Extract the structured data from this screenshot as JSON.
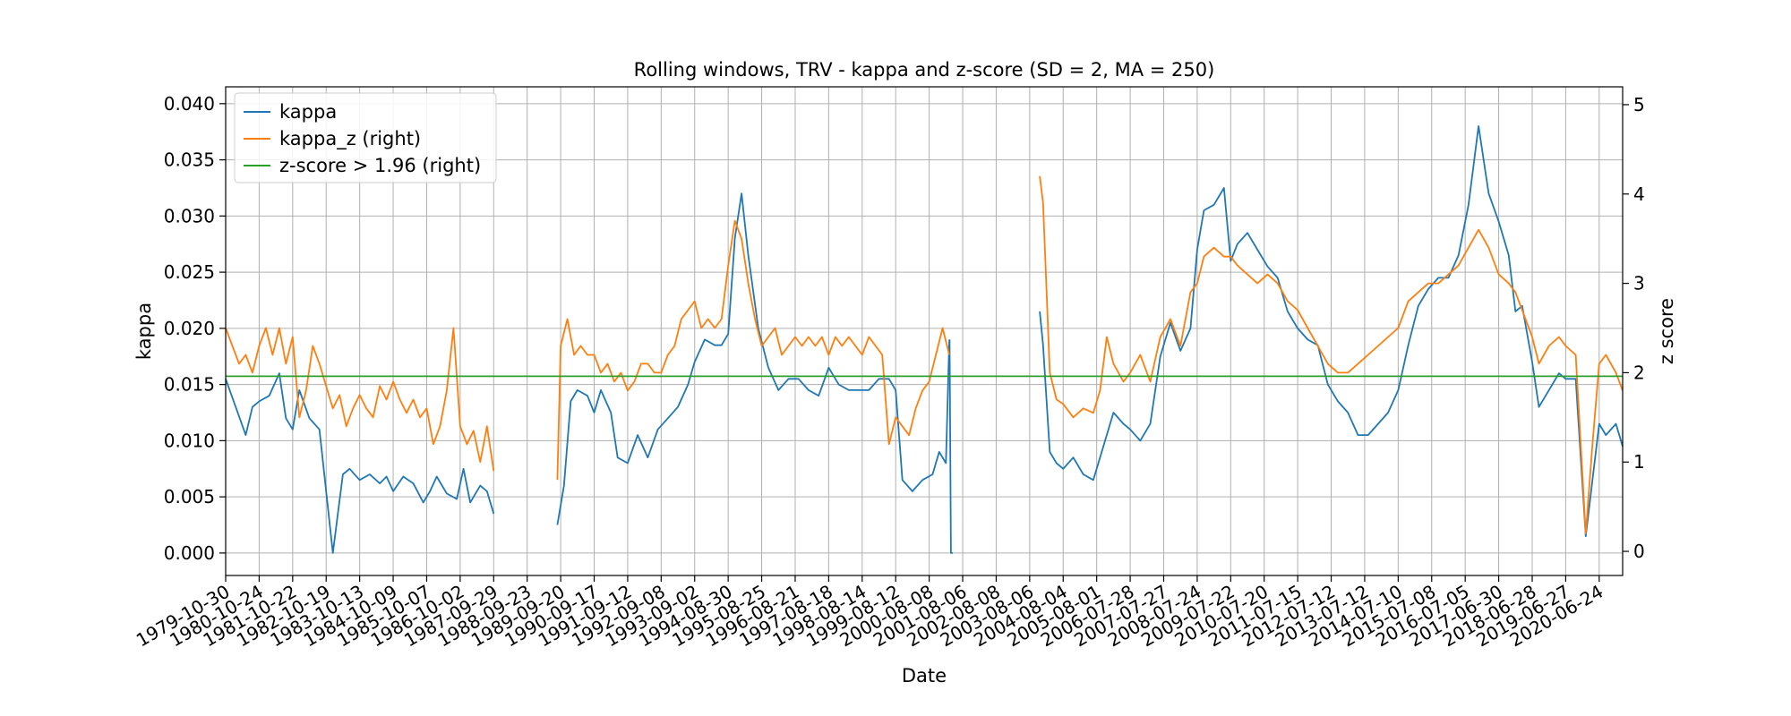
{
  "chart_data": {
    "type": "line",
    "title": "Rolling windows, TRV - kappa and z-score (SD = 2, MA = 250)",
    "xlabel": "Date",
    "ylabel": "kappa",
    "ylabel_right": "z score",
    "ylim": [
      -0.002,
      0.0415
    ],
    "ylim_right": [
      -0.27,
      5.2
    ],
    "yticks": [
      "0.000",
      "0.005",
      "0.010",
      "0.015",
      "0.020",
      "0.025",
      "0.030",
      "0.035",
      "0.040"
    ],
    "yticks_right": [
      "0",
      "1",
      "2",
      "3",
      "4",
      "5"
    ],
    "grid": true,
    "legend_position": "top-left",
    "x_tick_labels": [
      "1979-10-30",
      "1980-10-24",
      "1981-10-22",
      "1982-10-19",
      "1983-10-13",
      "1984-10-09",
      "1985-10-07",
      "1986-10-02",
      "1987-09-29",
      "1988-09-23",
      "1989-09-20",
      "1990-09-17",
      "1991-09-12",
      "1992-09-08",
      "1993-09-02",
      "1994-08-30",
      "1995-08-25",
      "1996-08-21",
      "1997-08-18",
      "1998-08-14",
      "1999-08-12",
      "2000-08-08",
      "2001-08-06",
      "2002-08-08",
      "2003-08-06",
      "2004-08-04",
      "2005-08-01",
      "2006-07-28",
      "2007-07-27",
      "2008-07-24",
      "2009-07-22",
      "2010-07-20",
      "2011-07-15",
      "2012-07-12",
      "2013-07-12",
      "2014-07-10",
      "2015-07-08",
      "2016-07-05",
      "2017-06-30",
      "2018-06-28",
      "2019-06-27",
      "2020-06-24"
    ],
    "x_start_index": 0,
    "x_end_index": 41.7,
    "series": [
      {
        "name": "kappa",
        "axis": "left",
        "color": "#1f77b4",
        "segments": [
          {
            "x": [
              0,
              0.3,
              0.6,
              0.8,
              1.0,
              1.3,
              1.6,
              1.8,
              2.0,
              2.2,
              2.5,
              2.8,
              3.0,
              3.2,
              3.5,
              3.7,
              4.0,
              4.3,
              4.6,
              4.8,
              5.0,
              5.3,
              5.6,
              5.9,
              6.1,
              6.3,
              6.6,
              6.9,
              7.1,
              7.3,
              7.6,
              7.8,
              8.0
            ],
            "y": [
              0.0155,
              0.013,
              0.0105,
              0.013,
              0.0135,
              0.014,
              0.016,
              0.012,
              0.011,
              0.0145,
              0.012,
              0.011,
              0.0055,
              0.0,
              0.007,
              0.0075,
              0.0065,
              0.007,
              0.0062,
              0.0068,
              0.0055,
              0.0068,
              0.0062,
              0.0045,
              0.0055,
              0.0068,
              0.0053,
              0.0048,
              0.0075,
              0.0045,
              0.006,
              0.0055,
              0.0035
            ]
          },
          {
            "x": [
              9.9,
              10.1,
              10.3,
              10.5,
              10.8,
              11.0,
              11.2,
              11.5,
              11.7,
              12.0,
              12.3,
              12.6,
              12.9,
              13.2,
              13.5,
              13.8,
              14.0,
              14.3,
              14.6,
              14.8,
              15.0,
              15.2,
              15.4,
              15.6,
              15.9,
              16.2,
              16.5,
              16.8,
              17.1,
              17.4,
              17.7,
              18.0,
              18.3,
              18.6,
              18.9,
              19.2,
              19.5,
              19.8,
              20.0,
              20.2,
              20.5,
              20.8,
              21.1,
              21.3,
              21.5,
              21.6
            ],
            "y": [
              0.0025,
              0.006,
              0.0135,
              0.0145,
              0.014,
              0.0125,
              0.0145,
              0.0125,
              0.0085,
              0.008,
              0.0105,
              0.0085,
              0.011,
              0.012,
              0.013,
              0.015,
              0.017,
              0.019,
              0.0185,
              0.0185,
              0.0195,
              0.028,
              0.032,
              0.0265,
              0.02,
              0.0165,
              0.0145,
              0.0155,
              0.0155,
              0.0145,
              0.014,
              0.0165,
              0.015,
              0.0145,
              0.0145,
              0.0145,
              0.0155,
              0.0155,
              0.0145,
              0.0065,
              0.0055,
              0.0065,
              0.007,
              0.009,
              0.008,
              0.019
            ]
          },
          {
            "x": [
              21.61,
              21.65,
              21.7
            ],
            "y": [
              0.019,
              0.0,
              0.0
            ]
          },
          {
            "x": [
              24.3,
              24.4,
              24.6,
              24.8,
              25.0,
              25.3,
              25.6,
              25.9,
              26.1,
              26.3,
              26.5,
              26.8,
              27.0,
              27.3,
              27.6,
              27.9,
              28.2,
              28.5,
              28.8,
              29.0,
              29.2,
              29.5,
              29.8,
              30.0,
              30.2,
              30.5,
              30.8,
              31.1,
              31.4,
              31.7,
              32.0,
              32.3,
              32.6,
              32.9,
              33.2,
              33.5,
              33.8,
              34.1,
              34.4,
              34.7,
              35.0,
              35.3,
              35.6,
              35.9,
              36.2,
              36.5,
              36.8,
              37.1,
              37.4,
              37.7,
              38.0,
              38.3,
              38.5,
              38.7,
              39.0,
              39.2,
              39.5,
              39.8,
              40.0,
              40.3,
              40.6,
              40.8,
              41.0,
              41.2,
              41.5,
              41.7
            ],
            "y": [
              0.0215,
              0.0185,
              0.009,
              0.008,
              0.0075,
              0.0085,
              0.007,
              0.0065,
              0.0085,
              0.0105,
              0.0125,
              0.0115,
              0.011,
              0.01,
              0.0115,
              0.0175,
              0.0205,
              0.018,
              0.02,
              0.027,
              0.0305,
              0.031,
              0.0325,
              0.026,
              0.0275,
              0.0285,
              0.027,
              0.0255,
              0.0245,
              0.0215,
              0.02,
              0.019,
              0.0185,
              0.015,
              0.0135,
              0.0125,
              0.0105,
              0.0105,
              0.0115,
              0.0125,
              0.0145,
              0.0185,
              0.022,
              0.0235,
              0.0245,
              0.0245,
              0.0265,
              0.031,
              0.038,
              0.032,
              0.0295,
              0.0265,
              0.0215,
              0.022,
              0.017,
              0.013,
              0.0145,
              0.016,
              0.0155,
              0.0155,
              0.0015,
              0.0065,
              0.0115,
              0.0105,
              0.0115,
              0.0095
            ]
          }
        ]
      },
      {
        "name": "kappa_z (right)",
        "axis": "right",
        "color": "#ff7f0e",
        "segments": [
          {
            "x": [
              0,
              0.2,
              0.4,
              0.6,
              0.8,
              1.0,
              1.2,
              1.4,
              1.6,
              1.8,
              2.0,
              2.2,
              2.4,
              2.6,
              2.8,
              3.0,
              3.2,
              3.4,
              3.6,
              3.8,
              4.0,
              4.2,
              4.4,
              4.6,
              4.8,
              5.0,
              5.2,
              5.4,
              5.6,
              5.8,
              6.0,
              6.2,
              6.4,
              6.6,
              6.8,
              7.0,
              7.2,
              7.4,
              7.6,
              7.8,
              8.0
            ],
            "y": [
              2.5,
              2.3,
              2.1,
              2.2,
              2.0,
              2.3,
              2.5,
              2.2,
              2.5,
              2.1,
              2.4,
              1.5,
              1.8,
              2.3,
              2.1,
              1.85,
              1.6,
              1.75,
              1.4,
              1.6,
              1.75,
              1.6,
              1.5,
              1.85,
              1.7,
              1.9,
              1.7,
              1.55,
              1.7,
              1.5,
              1.6,
              1.2,
              1.4,
              1.8,
              2.5,
              1.4,
              1.2,
              1.35,
              1.0,
              1.4,
              0.9
            ]
          },
          {
            "x": [
              9.9,
              10.0,
              10.2,
              10.4,
              10.6,
              10.8,
              11.0,
              11.2,
              11.4,
              11.6,
              11.8,
              12.0,
              12.2,
              12.4,
              12.6,
              12.8,
              13.0,
              13.2,
              13.4,
              13.6,
              13.8,
              14.0,
              14.2,
              14.4,
              14.6,
              14.8,
              15.0,
              15.2,
              15.4,
              15.6,
              15.8,
              16.0,
              16.2,
              16.4,
              16.6,
              16.8,
              17.0,
              17.2,
              17.4,
              17.6,
              17.8,
              18.0,
              18.2,
              18.4,
              18.6,
              18.8,
              19.0,
              19.2,
              19.4,
              19.6,
              19.8,
              20.0,
              20.2,
              20.4,
              20.6,
              20.8,
              21.0,
              21.2,
              21.4,
              21.6
            ],
            "y": [
              0.8,
              2.3,
              2.6,
              2.2,
              2.3,
              2.2,
              2.2,
              2.0,
              2.1,
              1.9,
              2.0,
              1.8,
              1.9,
              2.1,
              2.1,
              2.0,
              2.0,
              2.2,
              2.3,
              2.6,
              2.7,
              2.8,
              2.5,
              2.6,
              2.5,
              2.6,
              3.2,
              3.7,
              3.5,
              3.0,
              2.6,
              2.3,
              2.4,
              2.5,
              2.2,
              2.3,
              2.4,
              2.3,
              2.4,
              2.3,
              2.4,
              2.2,
              2.4,
              2.3,
              2.4,
              2.3,
              2.2,
              2.4,
              2.3,
              2.2,
              1.2,
              1.5,
              1.4,
              1.3,
              1.6,
              1.8,
              1.9,
              2.2,
              2.5,
              2.2
            ]
          },
          {
            "x": [
              24.3,
              24.4,
              24.6,
              24.8,
              25.0,
              25.3,
              25.6,
              25.9,
              26.1,
              26.3,
              26.5,
              26.8,
              27.0,
              27.3,
              27.6,
              27.9,
              28.2,
              28.5,
              28.8,
              29.0,
              29.2,
              29.5,
              29.8,
              30.0,
              30.2,
              30.5,
              30.8,
              31.1,
              31.4,
              31.7,
              32.0,
              32.3,
              32.6,
              32.9,
              33.2,
              33.5,
              33.8,
              34.1,
              34.4,
              34.7,
              35.0,
              35.3,
              35.6,
              35.9,
              36.2,
              36.5,
              36.8,
              37.1,
              37.4,
              37.7,
              38.0,
              38.3,
              38.5,
              38.7,
              39.0,
              39.2,
              39.5,
              39.8,
              40.0,
              40.3,
              40.6,
              40.8,
              41.0,
              41.2,
              41.5,
              41.7
            ],
            "y": [
              4.2,
              3.9,
              2.0,
              1.7,
              1.65,
              1.5,
              1.6,
              1.55,
              1.8,
              2.4,
              2.1,
              1.9,
              2.0,
              2.2,
              1.9,
              2.4,
              2.6,
              2.3,
              2.9,
              3.0,
              3.3,
              3.4,
              3.3,
              3.3,
              3.2,
              3.1,
              3.0,
              3.1,
              3.0,
              2.8,
              2.7,
              2.5,
              2.3,
              2.1,
              2.0,
              2.0,
              2.1,
              2.2,
              2.3,
              2.4,
              2.5,
              2.8,
              2.9,
              3.0,
              3.0,
              3.1,
              3.2,
              3.4,
              3.6,
              3.4,
              3.1,
              3.0,
              2.9,
              2.7,
              2.4,
              2.1,
              2.3,
              2.4,
              2.3,
              2.2,
              0.2,
              1.2,
              2.1,
              2.2,
              2.0,
              1.8
            ]
          }
        ]
      },
      {
        "name": "z-score > 1.96 (right)",
        "axis": "right",
        "color": "#2ca02c",
        "segments": [
          {
            "x": [
              0,
              41.7
            ],
            "y": [
              1.96,
              1.96
            ]
          }
        ]
      }
    ]
  }
}
